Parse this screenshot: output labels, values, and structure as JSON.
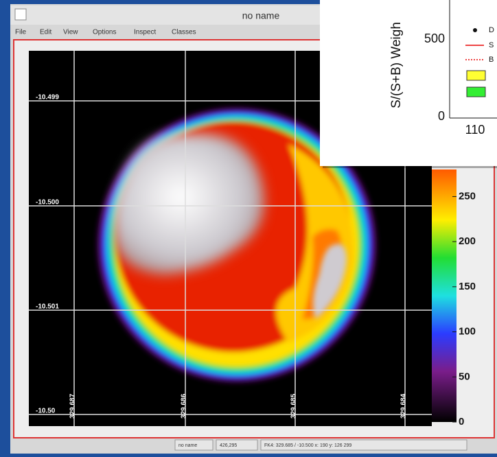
{
  "window": {
    "title": "no name",
    "menu": [
      "File",
      "Edit",
      "View",
      "Options",
      "Inspect",
      "Classes"
    ]
  },
  "image": {
    "y_labels": [
      "-10.499",
      "-10.500",
      "-10.501",
      "-10.50"
    ],
    "x_labels": [
      "329.687",
      "329.686",
      "329.685",
      "329.684"
    ],
    "colorbar": {
      "range": [
        0,
        280
      ],
      "ticks": [
        0,
        50,
        100,
        150,
        200,
        250
      ]
    }
  },
  "status": [
    "no name",
    "426,295",
    "FK4: 329.685 / -10.500  x: 190  y: 126  299"
  ],
  "inset": {
    "y_label": "S/(S+B) Weigh",
    "y_ticks": [
      "500",
      "0"
    ],
    "x_ticks": [
      "110"
    ],
    "legend": [
      "D",
      "S",
      "B"
    ]
  }
}
